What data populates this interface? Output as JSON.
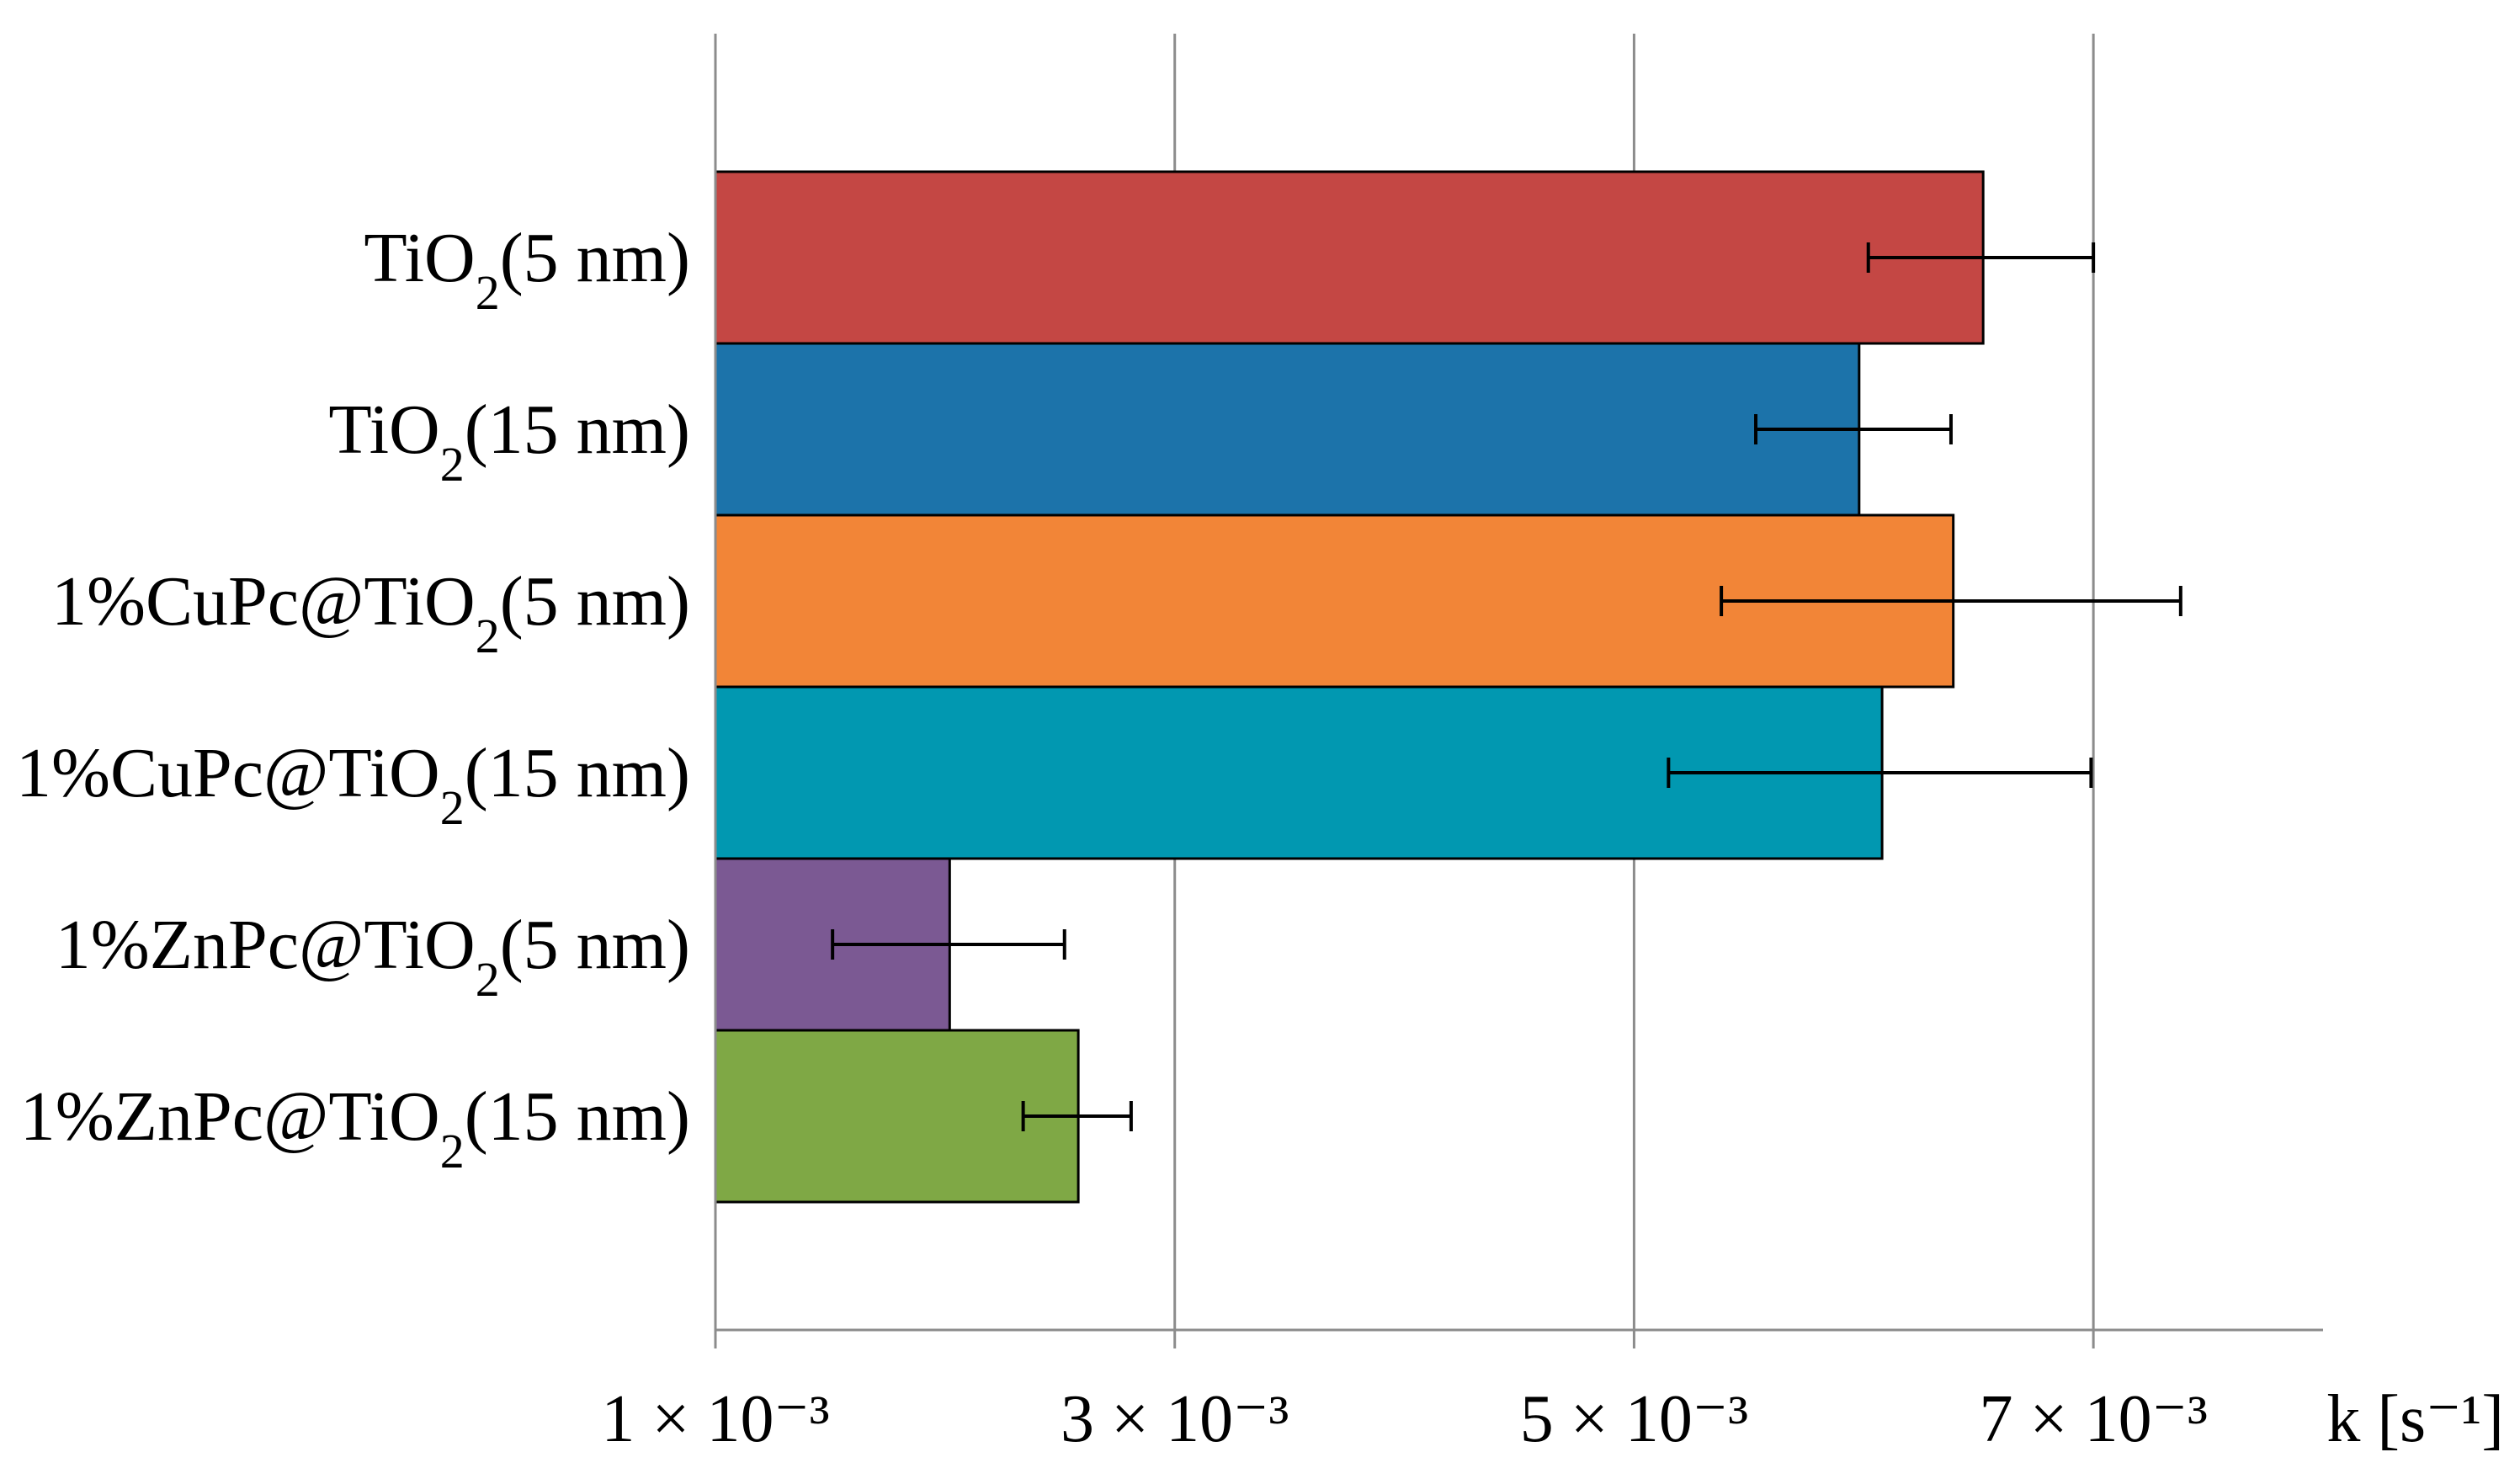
{
  "chart_data": {
    "type": "bar",
    "orientation": "horizontal",
    "title": "",
    "xlabel": "k [s⁻¹]",
    "ylabel": "",
    "xlim": [
      0.001,
      0.008
    ],
    "xticks": [
      0.001,
      0.003,
      0.005,
      0.007
    ],
    "xtick_labels": [
      "1 × 10⁻³",
      "3 × 10⁻³",
      "5 × 10⁻³",
      "7 × 10⁻³"
    ],
    "grid": "vertical",
    "legend": "none",
    "categories": [
      {
        "prefix": "TiO",
        "sub": "2",
        "suffix": "(5 nm)"
      },
      {
        "prefix": "TiO",
        "sub": "2",
        "suffix": "(15 nm)"
      },
      {
        "prefix": "1%CuPc@TiO",
        "sub": "2",
        "suffix": "(5 nm)"
      },
      {
        "prefix": "1%CuPc@TiO",
        "sub": "2",
        "suffix": "(15 nm)"
      },
      {
        "prefix": "1%ZnPc@TiO",
        "sub": "2",
        "suffix": "(5 nm)"
      },
      {
        "prefix": "1%ZnPc@TiO",
        "sub": "2",
        "suffix": "(15 nm)"
      }
    ],
    "values": [
      0.00652,
      0.00598,
      0.00639,
      0.00608,
      0.00202,
      0.00258
    ],
    "error_low": [
      0.00602,
      0.00553,
      0.00538,
      0.00515,
      0.00151,
      0.00234
    ],
    "error_high": [
      0.007,
      0.00638,
      0.00738,
      0.00699,
      0.00252,
      0.00281
    ],
    "colors": [
      "#c44744",
      "#1c73aa",
      "#f28537",
      "#0198b1",
      "#7b5993",
      "#7fa845"
    ]
  }
}
